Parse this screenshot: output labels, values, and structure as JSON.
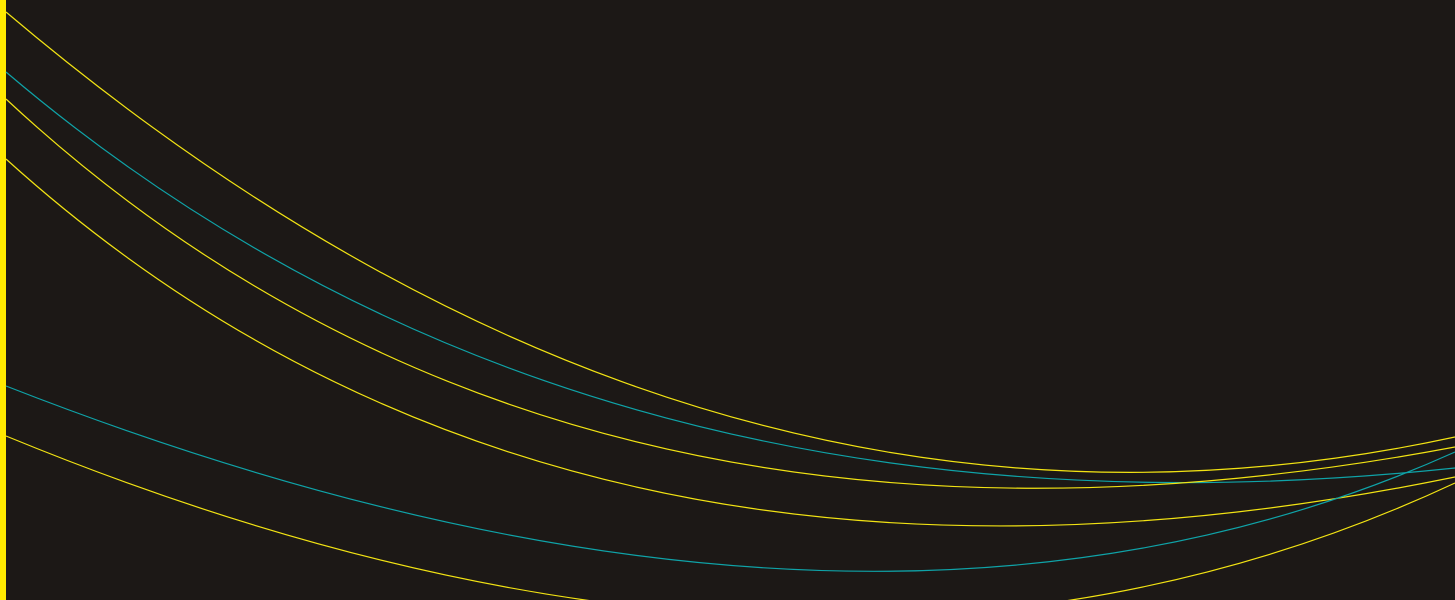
{
  "colors": {
    "background": "#1c1816",
    "accent_bar": "#ffea00",
    "curve_yellow": "#f2e313",
    "curve_teal": "#0fa3a8"
  },
  "decoration": {
    "style": "abstract-curved-lines",
    "accent_bar_color": "accent_bar",
    "curve_colors": [
      "curve_yellow",
      "curve_teal",
      "curve_yellow",
      "curve_yellow",
      "curve_teal",
      "curve_yellow"
    ]
  }
}
